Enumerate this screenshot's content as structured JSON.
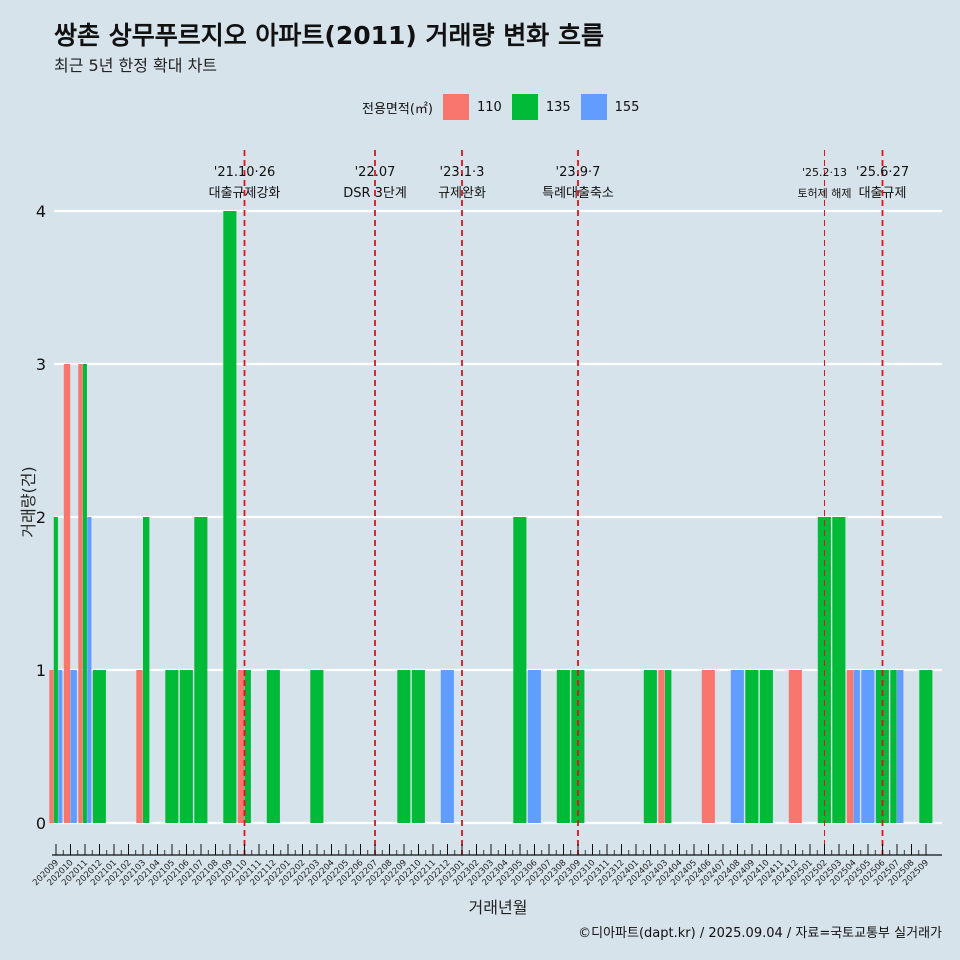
{
  "header": {
    "title": "쌍촌 상무푸르지오 아파트(2011) 거래량 변화 흐름",
    "subtitle": "최근 5년 한정 확대 차트"
  },
  "legend": {
    "title": "전용면적(㎡)",
    "items": [
      {
        "label": "110",
        "color": "#f8766d"
      },
      {
        "label": "135",
        "color": "#00ba38"
      },
      {
        "label": "155",
        "color": "#619cff"
      }
    ]
  },
  "caption": "©디아파트(dapt.kr) / 2025.09.04 / 자료=국토교통부 실거래가",
  "chart_data": {
    "type": "bar",
    "xlabel": "거래년월",
    "ylabel": "거래량(건)",
    "ylim": [
      0,
      4
    ],
    "y_ticks": [
      0,
      1,
      2,
      3,
      4
    ],
    "grid": true,
    "legend_position": "top",
    "categories": [
      "202009",
      "202010",
      "202011",
      "202012",
      "202101",
      "202102",
      "202103",
      "202104",
      "202105",
      "202106",
      "202107",
      "202108",
      "202109",
      "202110",
      "202111",
      "202112",
      "202201",
      "202202",
      "202203",
      "202204",
      "202205",
      "202206",
      "202207",
      "202208",
      "202209",
      "202210",
      "202211",
      "202212",
      "202301",
      "202302",
      "202303",
      "202304",
      "202305",
      "202306",
      "202307",
      "202308",
      "202309",
      "202310",
      "202311",
      "202312",
      "202401",
      "202402",
      "202403",
      "202404",
      "202405",
      "202406",
      "202407",
      "202408",
      "202409",
      "202410",
      "202411",
      "202412",
      "202501",
      "202502",
      "202503",
      "202504",
      "202505",
      "202506",
      "202507",
      "202508",
      "202509"
    ],
    "series": [
      {
        "name": "110",
        "color": "#f8766d",
        "values": [
          1,
          3,
          3,
          0,
          0,
          0,
          1,
          0,
          0,
          0,
          0,
          0,
          0,
          1,
          0,
          0,
          0,
          0,
          0,
          0,
          0,
          0,
          0,
          0,
          0,
          0,
          0,
          0,
          0,
          0,
          0,
          0,
          0,
          0,
          0,
          0,
          0,
          0,
          0,
          0,
          0,
          0,
          1,
          0,
          0,
          1,
          0,
          0,
          0,
          0,
          0,
          1,
          0,
          0,
          0,
          1,
          0,
          0,
          0,
          0,
          0
        ]
      },
      {
        "name": "135",
        "color": "#00ba38",
        "values": [
          2,
          0,
          3,
          1,
          0,
          0,
          2,
          0,
          1,
          1,
          2,
          0,
          4,
          1,
          0,
          1,
          0,
          0,
          1,
          0,
          0,
          0,
          0,
          0,
          1,
          1,
          0,
          0,
          0,
          0,
          0,
          0,
          2,
          0,
          0,
          1,
          1,
          0,
          0,
          0,
          0,
          1,
          1,
          0,
          0,
          0,
          0,
          0,
          1,
          1,
          0,
          0,
          0,
          2,
          2,
          0,
          0,
          1,
          1,
          0,
          1
        ]
      },
      {
        "name": "155",
        "color": "#619cff",
        "values": [
          1,
          1,
          2,
          0,
          0,
          0,
          0,
          0,
          0,
          0,
          0,
          0,
          0,
          0,
          0,
          0,
          0,
          0,
          0,
          0,
          0,
          0,
          0,
          0,
          0,
          0,
          0,
          1,
          0,
          0,
          0,
          0,
          0,
          1,
          0,
          0,
          0,
          0,
          0,
          0,
          0,
          0,
          0,
          0,
          0,
          0,
          0,
          1,
          0,
          0,
          0,
          0,
          0,
          0,
          0,
          1,
          1,
          0,
          1,
          0,
          0
        ]
      }
    ],
    "annotations": [
      {
        "month": "202110",
        "date": "'21.10·26",
        "label": "대출규제강화",
        "style": "bold"
      },
      {
        "month": "202207",
        "date": "'22.07",
        "label": "DSR 3단계",
        "style": "bold"
      },
      {
        "month": "202301",
        "date": "'23.1·3",
        "label": "규제완화",
        "style": "bold"
      },
      {
        "month": "202309",
        "date": "'23.9·7",
        "label": "특례대출축소",
        "style": "bold"
      },
      {
        "month": "202502",
        "date": "'25.2·13",
        "label": "토허제 해제",
        "style": "thin"
      },
      {
        "month": "202506",
        "date": "'25.6·27",
        "label": "대출규제",
        "style": "bold"
      }
    ]
  }
}
